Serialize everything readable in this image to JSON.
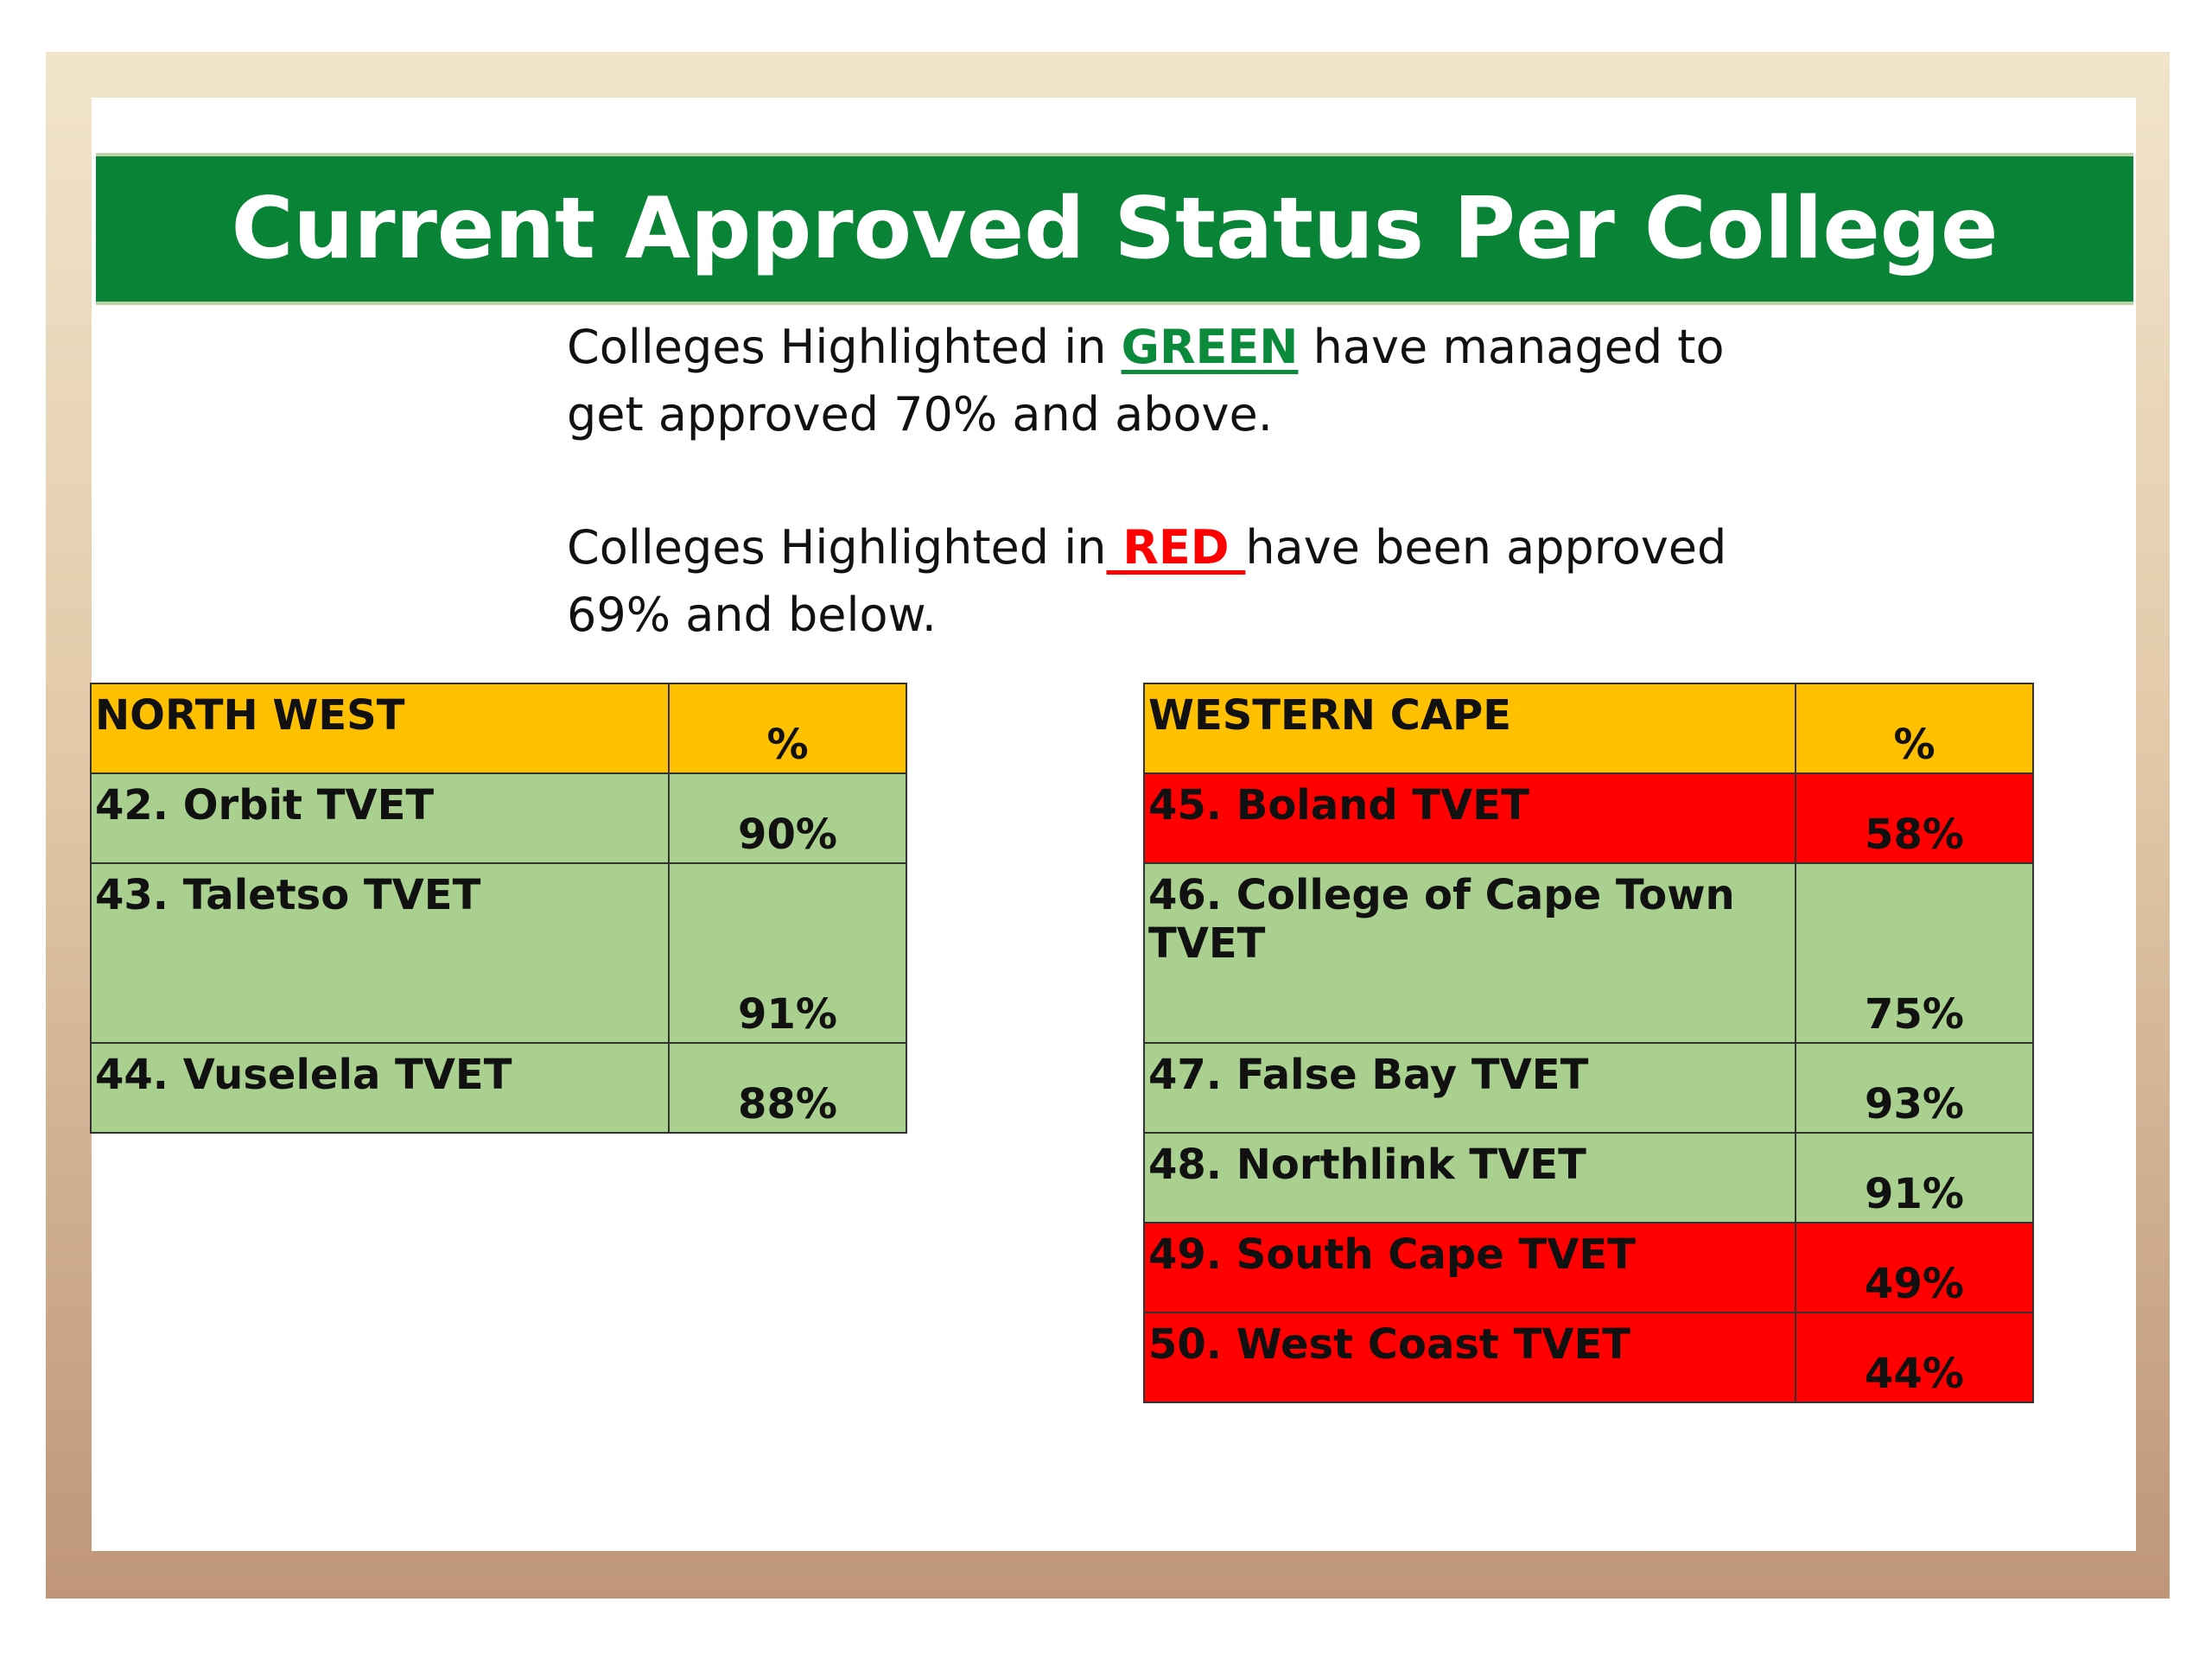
{
  "slide": {
    "title": "Current Approved Status Per College"
  },
  "legend": {
    "green_prefix": "Colleges Highlighted in ",
    "green_word": "GREEN",
    "green_suffix": " have managed to",
    "green_line2": "get approved 70% and above.",
    "red_prefix": "Colleges Highlighted in",
    "red_word": " RED ",
    "red_suffix": "have been approved",
    "red_line2": "69% and below.",
    "colors": {
      "green": "#0c8a3c",
      "red": "#ff0000",
      "header": "#ffc000",
      "row_green": "#a9d08e",
      "row_red": "#ff0000"
    }
  },
  "north_west": {
    "header": "NORTH WEST",
    "pct_header": "%",
    "rows": [
      {
        "name": "42. Orbit TVET",
        "pct": "90%",
        "status": "green"
      },
      {
        "name": "43. Taletso TVET",
        "pct": "91%",
        "status": "green"
      },
      {
        "name": "44. Vuselela TVET",
        "pct": "88%",
        "status": "green"
      }
    ]
  },
  "western_cape": {
    "header": "WESTERN CAPE",
    "pct_header": "%",
    "rows": [
      {
        "name": "45. Boland TVET",
        "pct": "58%",
        "status": "red"
      },
      {
        "name": "46. College of Cape Town TVET",
        "pct": "75%",
        "status": "green"
      },
      {
        "name": "47. False Bay TVET",
        "pct": "93%",
        "status": "green"
      },
      {
        "name": "48. Northlink TVET",
        "pct": "91%",
        "status": "green"
      },
      {
        "name": "49. South Cape TVET",
        "pct": "49%",
        "status": "red"
      },
      {
        "name": "50. West Coast TVET",
        "pct": "44%",
        "status": "red"
      }
    ]
  }
}
